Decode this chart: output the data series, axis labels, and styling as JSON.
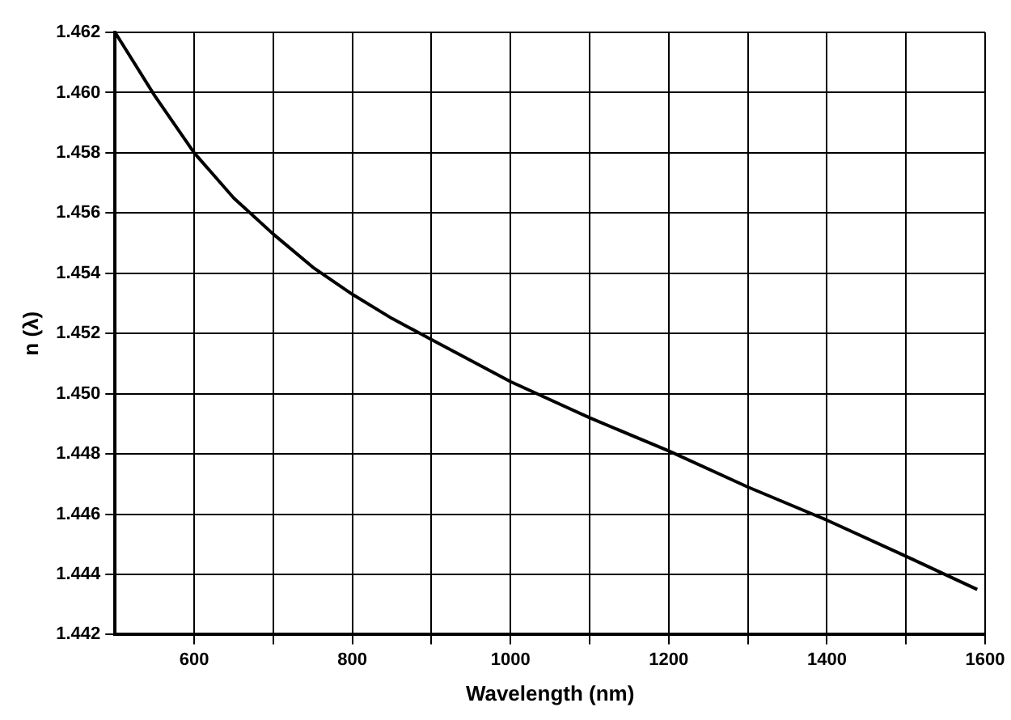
{
  "chart_data": {
    "type": "line",
    "xlabel": "Wavelength (nm)",
    "ylabel": "n (λ)",
    "x": [
      500,
      550,
      600,
      650,
      700,
      750,
      800,
      850,
      900,
      950,
      1000,
      1100,
      1200,
      1300,
      1400,
      1500,
      1590
    ],
    "series": [
      {
        "color": "#000000",
        "values": [
          1.462,
          1.4599,
          1.458,
          1.4565,
          1.4553,
          1.4542,
          1.4533,
          1.4525,
          1.4518,
          1.4511,
          1.4504,
          1.4492,
          1.4481,
          1.4469,
          1.4458,
          1.4446,
          1.4435
        ]
      }
    ],
    "xlim": [
      500,
      1600
    ],
    "xticks": [
      {
        "value": 600,
        "label": "600"
      },
      {
        "value": 700,
        "label": null
      },
      {
        "value": 800,
        "label": "800"
      },
      {
        "value": 900,
        "label": null
      },
      {
        "value": 1000,
        "label": "1000"
      },
      {
        "value": 1100,
        "label": null
      },
      {
        "value": 1200,
        "label": "1200"
      },
      {
        "value": 1300,
        "label": null
      },
      {
        "value": 1400,
        "label": "1400"
      },
      {
        "value": 1500,
        "label": null
      },
      {
        "value": 1600,
        "label": "1600"
      }
    ],
    "ylim": [
      1.442,
      1.462
    ],
    "yticks": [
      {
        "value": 1.442,
        "label": "1.442"
      },
      {
        "value": 1.444,
        "label": "1.444"
      },
      {
        "value": 1.446,
        "label": "1.446"
      },
      {
        "value": 1.448,
        "label": "1.448"
      },
      {
        "value": 1.45,
        "label": "1.450"
      },
      {
        "value": 1.452,
        "label": "1.452"
      },
      {
        "value": 1.454,
        "label": "1.454"
      },
      {
        "value": 1.456,
        "label": "1.456"
      },
      {
        "value": 1.458,
        "label": "1.458"
      },
      {
        "value": 1.46,
        "label": "1.460"
      },
      {
        "value": 1.462,
        "label": "1.462"
      }
    ],
    "grid": true,
    "marker": "none",
    "line_style": "solid",
    "legend": false
  }
}
